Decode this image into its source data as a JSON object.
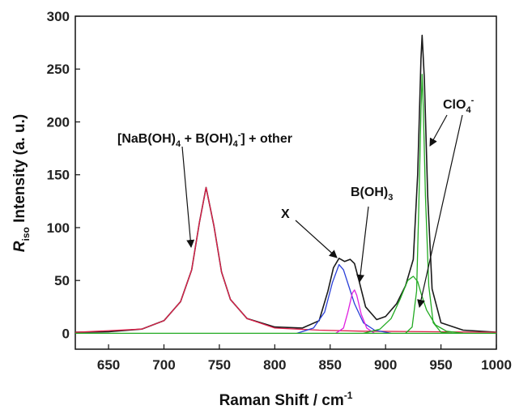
{
  "chart_data": {
    "type": "line",
    "title": "",
    "xlabel": "Raman Shift / cm",
    "xlabel_sup": "-1",
    "ylabel_main": "R",
    "ylabel_sub": "iso",
    "ylabel_rest": " Intensity (a. u.)",
    "xlim": [
      620,
      1000
    ],
    "ylim": [
      -15,
      300
    ],
    "x_ticks": [
      650,
      700,
      750,
      800,
      850,
      900,
      950,
      1000
    ],
    "y_ticks": [
      0,
      50,
      100,
      150,
      200,
      250,
      300
    ],
    "grid": false,
    "legend": "none",
    "series": [
      {
        "color": "#1a1a1a",
        "points": [
          [
            620,
            1
          ],
          [
            650,
            1.5
          ],
          [
            680,
            4
          ],
          [
            700,
            12
          ],
          [
            715,
            30
          ],
          [
            725,
            60
          ],
          [
            732,
            105
          ],
          [
            738,
            138
          ],
          [
            745,
            102
          ],
          [
            752,
            58
          ],
          [
            760,
            32
          ],
          [
            775,
            14
          ],
          [
            800,
            6
          ],
          [
            825,
            5
          ],
          [
            840,
            12
          ],
          [
            848,
            40
          ],
          [
            853,
            62
          ],
          [
            858,
            71
          ],
          [
            863,
            68
          ],
          [
            868,
            70
          ],
          [
            872,
            66
          ],
          [
            876,
            50
          ],
          [
            882,
            25
          ],
          [
            892,
            13
          ],
          [
            900,
            16
          ],
          [
            910,
            28
          ],
          [
            918,
            45
          ],
          [
            925,
            70
          ],
          [
            929,
            150
          ],
          [
            932,
            260
          ],
          [
            933,
            282
          ],
          [
            935,
            240
          ],
          [
            938,
            130
          ],
          [
            942,
            42
          ],
          [
            950,
            10
          ],
          [
            970,
            3
          ],
          [
            1000,
            1
          ]
        ]
      },
      {
        "color": "#e0204a",
        "points": [
          [
            620,
            1
          ],
          [
            680,
            4
          ],
          [
            700,
            12
          ],
          [
            715,
            30
          ],
          [
            725,
            60
          ],
          [
            732,
            105
          ],
          [
            738,
            138
          ],
          [
            745,
            102
          ],
          [
            752,
            58
          ],
          [
            760,
            32
          ],
          [
            775,
            14
          ],
          [
            800,
            5
          ],
          [
            840,
            3
          ],
          [
            880,
            2
          ],
          [
            1000,
            1
          ]
        ]
      },
      {
        "color": "#2a3fd8",
        "points": [
          [
            820,
            0
          ],
          [
            835,
            5
          ],
          [
            845,
            20
          ],
          [
            852,
            48
          ],
          [
            858,
            65
          ],
          [
            862,
            60
          ],
          [
            867,
            44
          ],
          [
            872,
            28
          ],
          [
            880,
            10
          ],
          [
            890,
            3
          ],
          [
            905,
            0
          ]
        ]
      },
      {
        "color": "#e020e0",
        "points": [
          [
            855,
            0
          ],
          [
            862,
            5
          ],
          [
            866,
            20
          ],
          [
            870,
            38
          ],
          [
            872,
            41
          ],
          [
            874,
            36
          ],
          [
            878,
            18
          ],
          [
            883,
            5
          ],
          [
            890,
            0
          ]
        ]
      },
      {
        "color": "#22aa22",
        "points": [
          [
            880,
            0
          ],
          [
            895,
            4
          ],
          [
            905,
            14
          ],
          [
            913,
            32
          ],
          [
            920,
            50
          ],
          [
            925,
            54
          ],
          [
            929,
            49
          ],
          [
            932,
            38
          ],
          [
            937,
            22
          ],
          [
            945,
            8
          ],
          [
            955,
            2
          ],
          [
            970,
            0
          ]
        ]
      },
      {
        "color": "#22aa22",
        "points": [
          [
            918,
            0
          ],
          [
            924,
            6
          ],
          [
            928,
            40
          ],
          [
            930,
            120
          ],
          [
            932,
            210
          ],
          [
            933,
            245
          ],
          [
            934,
            215
          ],
          [
            936,
            130
          ],
          [
            939,
            45
          ],
          [
            943,
            10
          ],
          [
            950,
            1
          ],
          [
            960,
            0
          ]
        ]
      },
      {
        "color": "#22aa22",
        "points": [
          [
            620,
            0
          ],
          [
            1000,
            0
          ]
        ]
      }
    ],
    "annotations": {
      "label1": {
        "a": "[NaB(OH)",
        "b": "4",
        "c": " + B(OH)",
        "d": "4",
        "e": "-",
        "f": "] + other"
      },
      "label2": "X",
      "label3": {
        "a": "B(OH)",
        "b": "3"
      },
      "label4": {
        "a": "ClO",
        "b": "4",
        "c": "-"
      }
    }
  }
}
